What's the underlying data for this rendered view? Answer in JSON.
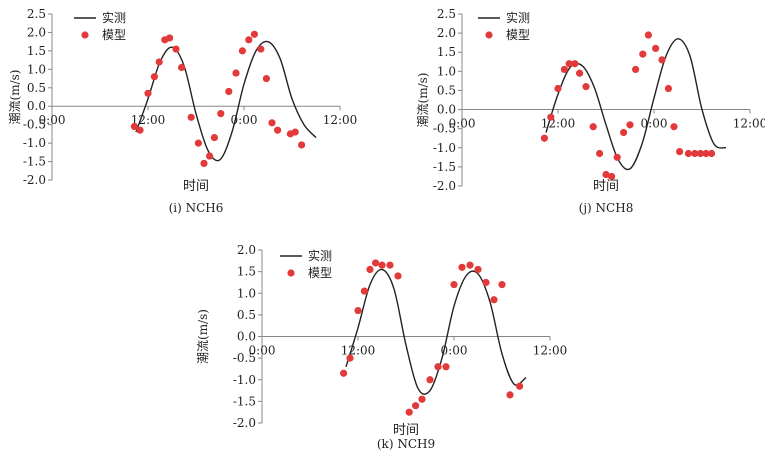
{
  "chart_data": [
    {
      "type": "line",
      "title": "(i) NCH6",
      "xlabel": "时间",
      "ylabel": "潮流(m/s)",
      "xticks": [
        "0:00",
        "12:00",
        "0:00",
        "12:00"
      ],
      "yticks": [
        "2.5",
        "2.0",
        "1.5",
        "1.0",
        "0.5",
        "0.0",
        "-0.5",
        "-1.0",
        "-1.5",
        "-2.0"
      ],
      "ylim": [
        -2.0,
        2.5
      ],
      "xlim_hours": [
        0,
        36
      ],
      "legend_position": "top-left",
      "grid": false,
      "series": [
        {
          "name": "实测",
          "style": "line",
          "color": "#222222",
          "x_hours": [
            10.5,
            12,
            13.5,
            15,
            16.5,
            18,
            19.5,
            21,
            22.5,
            24,
            25.5,
            27,
            28.5,
            30,
            31.5,
            33
          ],
          "values": [
            -0.7,
            0.2,
            1.2,
            1.6,
            1.1,
            -0.2,
            -1.2,
            -1.45,
            -0.7,
            0.6,
            1.5,
            1.75,
            1.3,
            0.2,
            -0.5,
            -0.85
          ]
        },
        {
          "name": "模型",
          "style": "scatter",
          "color": "#e23a3a",
          "x_hours": [
            10.3,
            11,
            12,
            12.8,
            13.4,
            14.1,
            14.7,
            15.5,
            16.2,
            17.4,
            18.3,
            19,
            19.7,
            20.3,
            21.1,
            22.1,
            23.0,
            23.8,
            24.6,
            25.3,
            26.1,
            26.8,
            27.5,
            28.2,
            29.8,
            30.4,
            31.2
          ],
          "values": [
            -0.55,
            -0.65,
            0.35,
            0.8,
            1.2,
            1.8,
            1.85,
            1.55,
            1.05,
            -0.3,
            -1.0,
            -1.55,
            -1.35,
            -0.85,
            -0.2,
            0.4,
            0.9,
            1.5,
            1.8,
            1.95,
            1.55,
            0.75,
            -0.45,
            -0.65,
            -0.75,
            -0.7,
            -1.05
          ]
        }
      ]
    },
    {
      "type": "line",
      "title": "(j) NCH8",
      "xlabel": "时间",
      "ylabel": "潮流(m/s)",
      "xticks": [
        "0:00",
        "12:00",
        "0:00",
        "12:00"
      ],
      "yticks": [
        "2.5",
        "2.0",
        "1.5",
        "1.0",
        "0.5",
        "0.0",
        "-0.5",
        "-1.0",
        "-1.5",
        "-2.0"
      ],
      "ylim": [
        -2.0,
        2.5
      ],
      "xlim_hours": [
        0,
        36
      ],
      "legend_position": "top-left",
      "grid": false,
      "series": [
        {
          "name": "实测",
          "style": "line",
          "color": "#222222",
          "x_hours": [
            10.5,
            12,
            13.5,
            15,
            16.5,
            18,
            19.5,
            21,
            22.5,
            24,
            25.5,
            27,
            28.5,
            30,
            31.5,
            33
          ],
          "values": [
            -0.6,
            0.4,
            1.1,
            1.15,
            0.6,
            -0.4,
            -1.3,
            -1.55,
            -0.9,
            0.3,
            1.4,
            1.85,
            1.4,
            0.0,
            -0.9,
            -1.0
          ]
        },
        {
          "name": "模型",
          "style": "scatter",
          "color": "#e23a3a",
          "x_hours": [
            10.3,
            11.1,
            12,
            12.8,
            13.4,
            14.1,
            14.7,
            15.5,
            16.4,
            17.2,
            18.0,
            18.7,
            19.4,
            20.2,
            21.0,
            21.7,
            22.6,
            23.3,
            24.2,
            25.0,
            25.8,
            26.5,
            27.2,
            28.3,
            29.1,
            29.8,
            30.5,
            31.2
          ],
          "values": [
            -0.75,
            -0.2,
            0.55,
            1.05,
            1.2,
            1.2,
            0.95,
            0.6,
            -0.45,
            -1.15,
            -1.7,
            -1.75,
            -1.25,
            -0.6,
            -0.4,
            1.05,
            1.45,
            1.95,
            1.6,
            1.3,
            0.55,
            -0.45,
            -1.1,
            -1.15,
            -1.15,
            -1.15,
            -1.15,
            -1.15
          ]
        }
      ]
    },
    {
      "type": "line",
      "title": "(k) NCH9",
      "xlabel": "时间",
      "ylabel": "潮流(m/s)",
      "xticks": [
        "0:00",
        "12:00",
        "0:00",
        "12:00"
      ],
      "yticks": [
        "2.0",
        "1.5",
        "1.0",
        "0.5",
        "0.0",
        "-0.5",
        "-1.0",
        "-1.5",
        "-2.0"
      ],
      "ylim": [
        -2.0,
        2.0
      ],
      "xlim_hours": [
        0,
        36
      ],
      "legend_position": "top-left",
      "grid": false,
      "series": [
        {
          "name": "实测",
          "style": "line",
          "color": "#222222",
          "x_hours": [
            10.5,
            12,
            13.5,
            15,
            16.5,
            18,
            19.5,
            21,
            22.5,
            24,
            25.5,
            27,
            28.5,
            30,
            31.5,
            33
          ],
          "values": [
            -0.7,
            0.2,
            1.2,
            1.55,
            1.1,
            -0.2,
            -1.2,
            -1.25,
            -0.5,
            0.7,
            1.4,
            1.45,
            0.8,
            -0.4,
            -1.1,
            -0.95
          ]
        },
        {
          "name": "模型",
          "style": "scatter",
          "color": "#e23a3a",
          "x_hours": [
            10.2,
            11,
            12,
            12.8,
            13.5,
            14.2,
            15,
            16,
            17,
            18.4,
            19.2,
            20,
            21,
            22,
            23,
            24,
            25,
            26,
            27,
            28,
            29,
            30,
            31,
            32.2
          ],
          "values": [
            -0.85,
            -0.5,
            0.6,
            1.05,
            1.55,
            1.7,
            1.65,
            1.65,
            1.4,
            -1.75,
            -1.6,
            -1.45,
            -1.0,
            -0.7,
            -0.7,
            1.2,
            1.6,
            1.65,
            1.55,
            1.25,
            0.85,
            1.2,
            -1.35,
            -1.15
          ]
        }
      ]
    }
  ]
}
